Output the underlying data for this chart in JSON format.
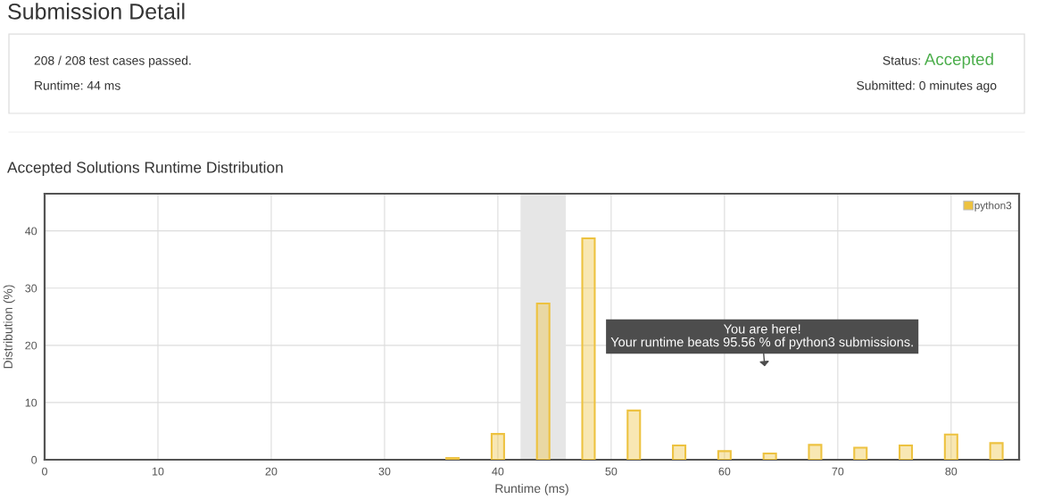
{
  "chart_data": {
    "type": "bar",
    "title": "Accepted Solutions Runtime Distribution",
    "xlabel": "Runtime (ms)",
    "ylabel": "Distribution (%)",
    "x": [
      36,
      40,
      44,
      48,
      52,
      56,
      60,
      64,
      68,
      72,
      76,
      80,
      84
    ],
    "series": [
      {
        "name": "python3",
        "color": "#edc240",
        "values": [
          0.3,
          4.5,
          27.3,
          38.7,
          8.6,
          2.5,
          1.5,
          1.1,
          2.6,
          2.1,
          2.5,
          4.4,
          2.9
        ]
      }
    ],
    "xlim": [
      0,
      86
    ],
    "ylim": [
      0,
      46.5
    ],
    "xticks": [
      0,
      10,
      20,
      30,
      40,
      50,
      60,
      70,
      80
    ],
    "yticks": [
      0,
      10,
      20,
      30,
      40
    ],
    "grid": true,
    "legend": "top right",
    "bands": [
      {
        "axis": "x",
        "from": 42,
        "to": 46,
        "color": "#e6e6e6"
      }
    ],
    "annotations": [
      "Submission Detail",
      "208 / 208 test cases passed.",
      "Runtime: 44 ms",
      "Status:",
      "Accepted",
      "Submitted: 0 minutes ago",
      "You are here!\nYour runtime beats 95.56 % of python3 submissions."
    ]
  }
}
